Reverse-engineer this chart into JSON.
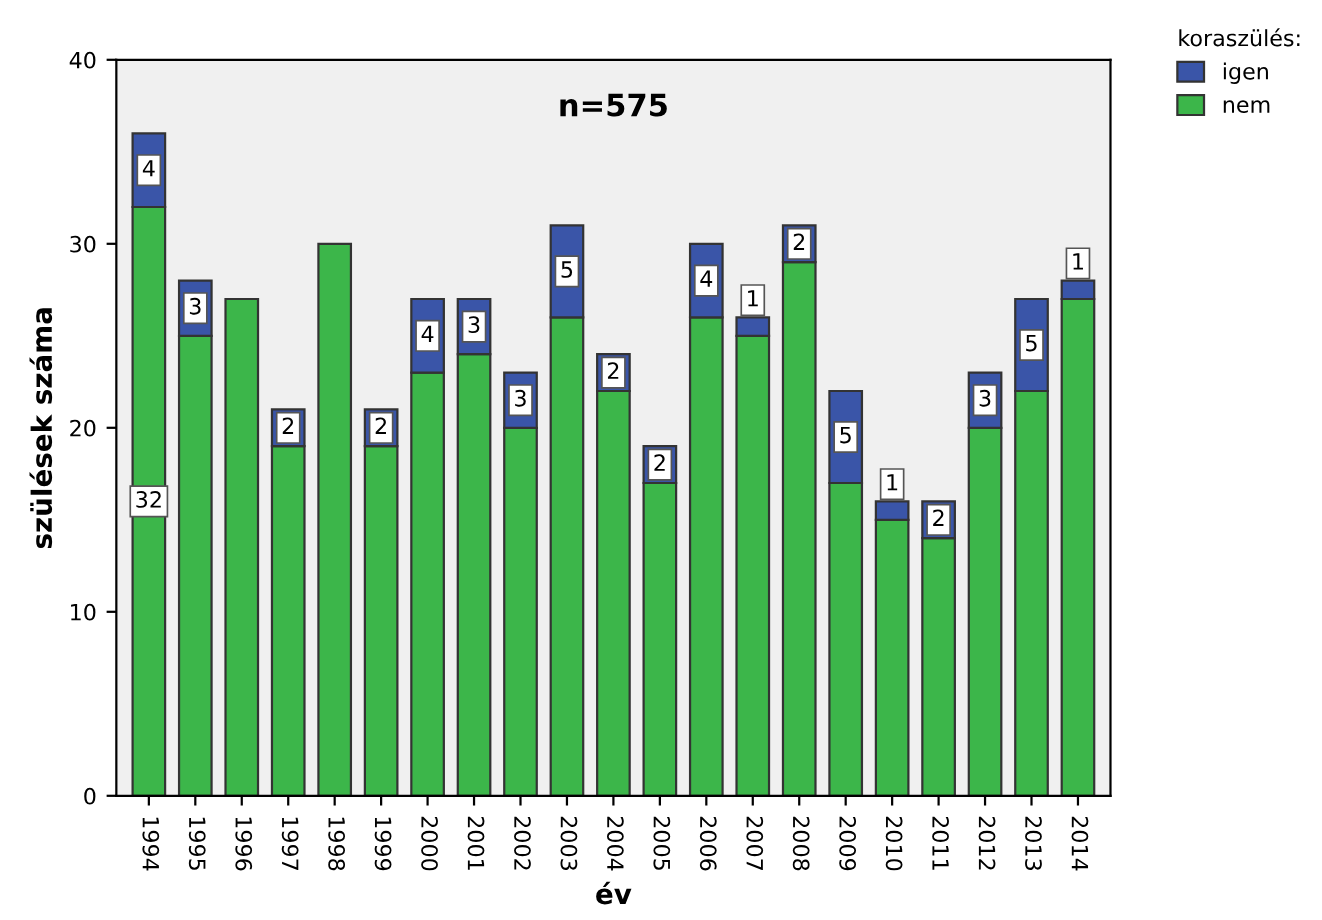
{
  "chart_data": {
    "type": "bar",
    "stacked": true,
    "categories": [
      "1994",
      "1995",
      "1996",
      "1997",
      "1998",
      "1999",
      "2000",
      "2001",
      "2002",
      "2003",
      "2004",
      "2005",
      "2006",
      "2007",
      "2008",
      "2009",
      "2010",
      "2011",
      "2012",
      "2013",
      "2014"
    ],
    "series": [
      {
        "name": "nem",
        "color": "#3cb64a",
        "values": [
          32,
          25,
          27,
          19,
          30,
          19,
          23,
          24,
          20,
          26,
          22,
          17,
          26,
          25,
          29,
          17,
          15,
          14,
          20,
          22,
          27
        ],
        "value_labels": [
          "32",
          null,
          null,
          null,
          null,
          null,
          null,
          null,
          null,
          null,
          null,
          null,
          null,
          null,
          null,
          null,
          null,
          null,
          null,
          null,
          null
        ]
      },
      {
        "name": "igen",
        "color": "#3a55a8",
        "values": [
          4,
          3,
          null,
          2,
          null,
          2,
          4,
          3,
          3,
          5,
          2,
          2,
          4,
          1,
          2,
          5,
          1,
          2,
          3,
          5,
          1
        ],
        "value_labels": [
          "4",
          "3",
          null,
          "2",
          null,
          "2",
          "4",
          "3",
          "3",
          "5",
          "2",
          "2",
          "4",
          "1",
          "2",
          "5",
          "1",
          "2",
          "3",
          "5",
          "1"
        ]
      }
    ],
    "ylim": [
      0,
      40
    ],
    "yticks": [
      0,
      10,
      20,
      30,
      40
    ],
    "xlabel": "év",
    "ylabel": "szülések száma",
    "legend_title": "koraszülés:",
    "legend": "top right",
    "grid": false,
    "annotations": [
      "n=575"
    ]
  }
}
